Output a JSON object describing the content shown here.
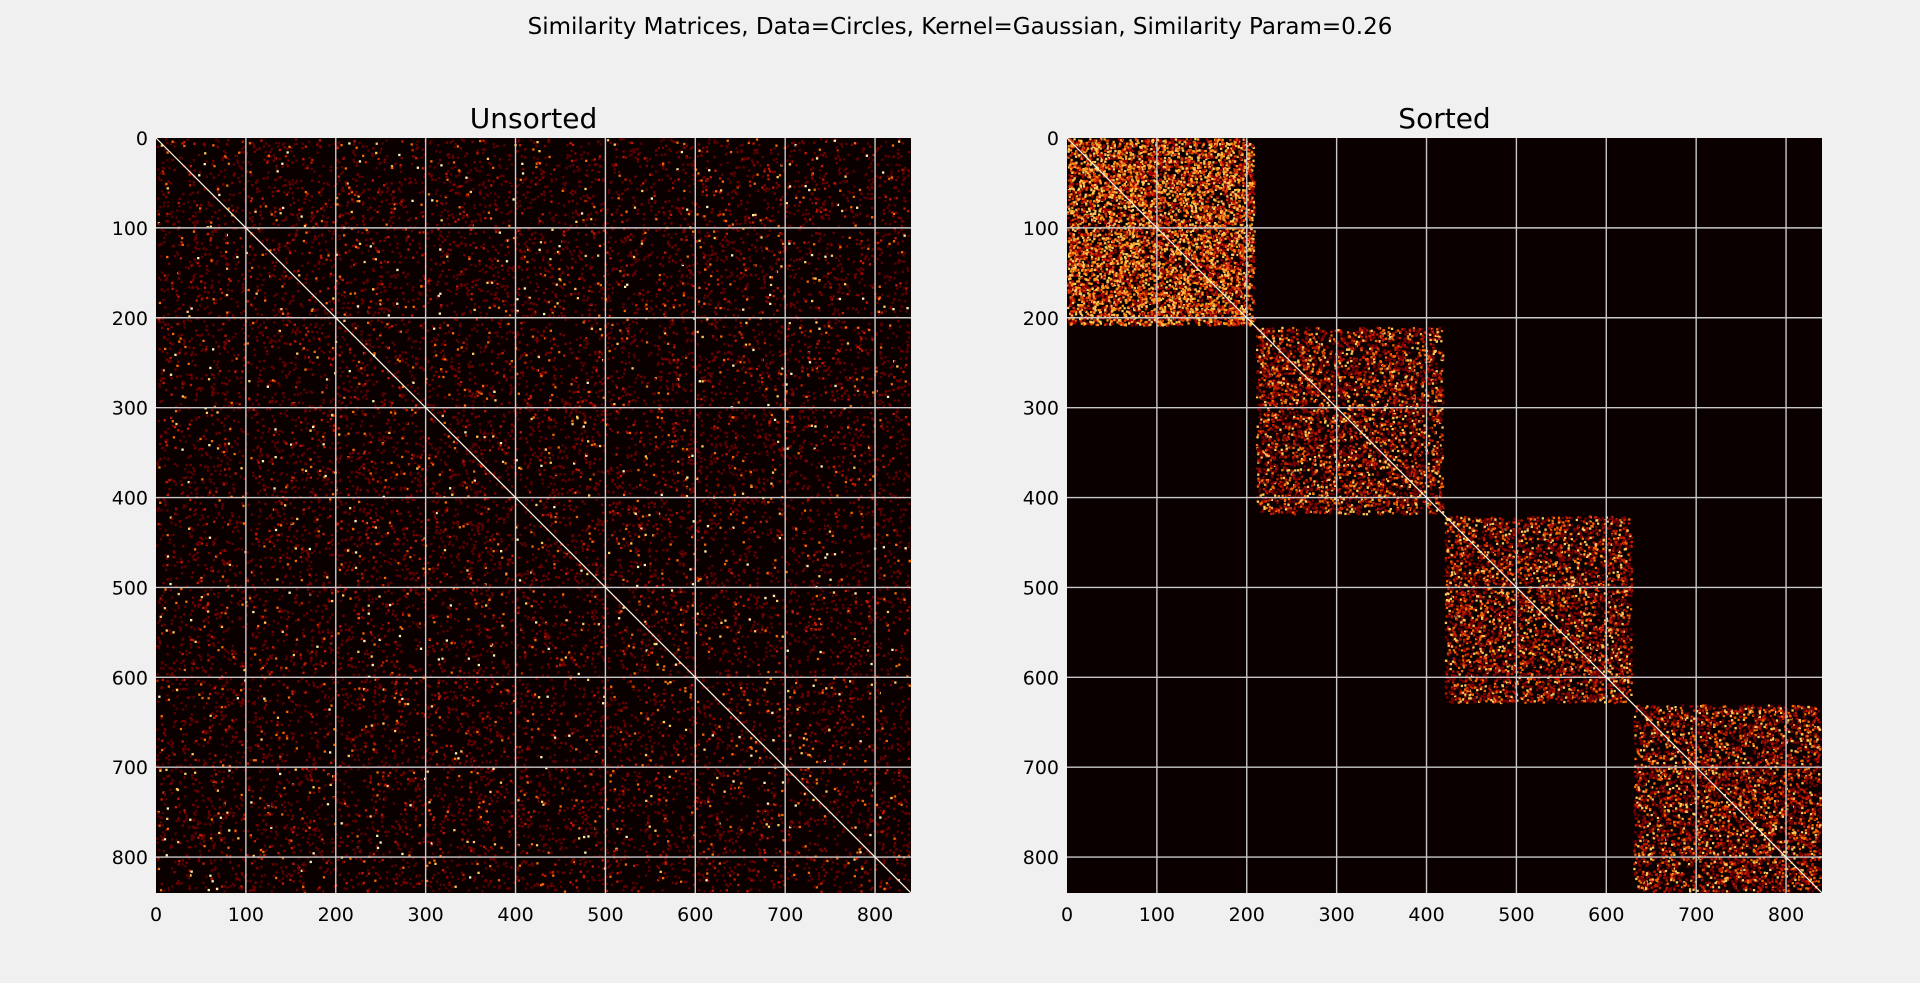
{
  "chart_data": {
    "suptitle": "Similarity Matrices, Data=Circles, Kernel=Gaussian, Similarity Param=0.26",
    "type": "heatmap",
    "colormap": "hot",
    "background_color": "#f0f0f0",
    "matrix_size": 840,
    "axis_range": [
      0,
      840
    ],
    "y_inverted": true,
    "grid": true,
    "grid_color": "#c8c8c8",
    "ticks": [
      0,
      100,
      200,
      300,
      400,
      500,
      600,
      700,
      800
    ],
    "tick_labels": [
      "0",
      "100",
      "200",
      "300",
      "400",
      "500",
      "600",
      "700",
      "800"
    ],
    "panels": [
      {
        "title": "Unsorted",
        "ordering": "unsorted",
        "cluster_blocks": [],
        "diagonal": "present"
      },
      {
        "title": "Sorted",
        "ordering": "sorted",
        "cluster_blocks": [
          {
            "start": 0,
            "end": 210
          },
          {
            "start": 210,
            "end": 420
          },
          {
            "start": 420,
            "end": 630
          },
          {
            "start": 630,
            "end": 840
          }
        ],
        "diagonal": "present"
      }
    ]
  }
}
